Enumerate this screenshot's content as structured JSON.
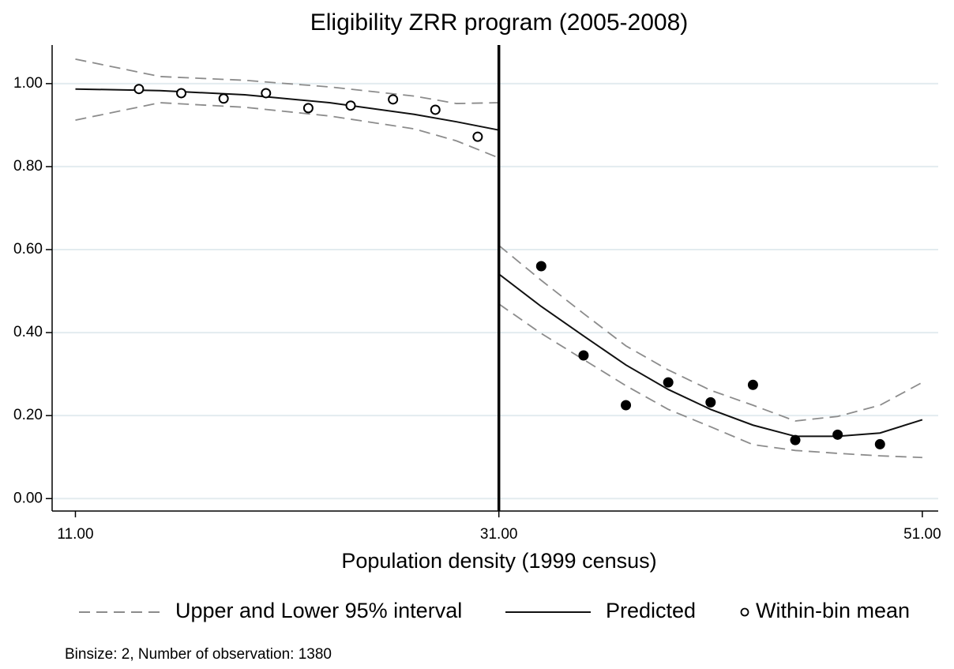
{
  "chart_data": {
    "type": "line",
    "title": "Eligibility ZRR program (2005-2008)",
    "x_label": "Population density (1999 census)",
    "note": "Binsize: 2, Number of observation: 1380",
    "cutoff": 31,
    "xlim": [
      9.9,
      51.75
    ],
    "ylim": [
      -0.03,
      1.093
    ],
    "xticks": [
      {
        "value": 11,
        "label": "11.00"
      },
      {
        "value": 31,
        "label": "31.00"
      },
      {
        "value": 51,
        "label": "51.00"
      }
    ],
    "yticks": [
      {
        "value": 0,
        "label": "0.00"
      },
      {
        "value": 0.2,
        "label": "0.20"
      },
      {
        "value": 0.4,
        "label": "0.40"
      },
      {
        "value": 0.6,
        "label": "0.60"
      },
      {
        "value": 0.8,
        "label": "0.80"
      },
      {
        "value": 1,
        "label": "1.00"
      }
    ],
    "grid": true,
    "series": [
      {
        "name": "Upper and Lower 95% interval",
        "color": "#8c8c8c",
        "style": "dashed",
        "x": [
          11,
          15,
          19,
          23,
          27,
          29,
          31,
          31,
          31,
          33,
          35,
          37,
          39,
          41,
          43,
          45,
          47,
          49,
          51
        ],
        "values": [
          1.059,
          1.017,
          1.008,
          0.992,
          0.97,
          0.952,
          0.954,
          null,
          0.61,
          0.526,
          0.446,
          0.368,
          0.31,
          0.261,
          0.225,
          0.187,
          0.198,
          0.225,
          0.28
        ]
      },
      {
        "color": "#8c8c8c",
        "style": "dashed",
        "x": [
          11,
          15,
          19,
          23,
          27,
          29,
          31,
          31,
          31,
          33,
          35,
          37,
          39,
          41,
          43,
          45,
          47,
          49,
          51
        ],
        "values": [
          0.912,
          0.954,
          0.943,
          0.922,
          0.891,
          0.862,
          0.821,
          null,
          0.469,
          0.398,
          0.335,
          0.272,
          0.215,
          0.173,
          0.13,
          0.116,
          0.109,
          0.103,
          0.099
        ]
      },
      {
        "name": "Predicted",
        "color": "#111111",
        "style": "solid",
        "x": [
          11,
          15,
          19,
          23,
          27,
          29,
          31,
          31,
          31,
          33,
          35,
          37,
          39,
          41,
          43,
          45,
          47,
          49,
          51
        ],
        "values": [
          0.987,
          0.983,
          0.973,
          0.954,
          0.926,
          0.908,
          0.888,
          null,
          0.541,
          0.463,
          0.392,
          0.322,
          0.263,
          0.215,
          0.177,
          0.15,
          0.15,
          0.158,
          0.19
        ]
      },
      {
        "name": "Within-bin mean",
        "color": "#000000",
        "style": "hollow",
        "x": [
          14,
          16,
          18,
          20,
          22,
          24,
          26,
          28,
          30
        ],
        "values": [
          0.987,
          0.977,
          0.964,
          0.977,
          0.941,
          0.947,
          0.962,
          0.937,
          0.872
        ]
      },
      {
        "color": "#000000",
        "style": "filled",
        "x": [
          33,
          35,
          37,
          39,
          41,
          43,
          45,
          47,
          49
        ],
        "values": [
          0.56,
          0.345,
          0.225,
          0.28,
          0.232,
          0.274,
          0.141,
          0.154,
          0.131
        ]
      }
    ]
  }
}
